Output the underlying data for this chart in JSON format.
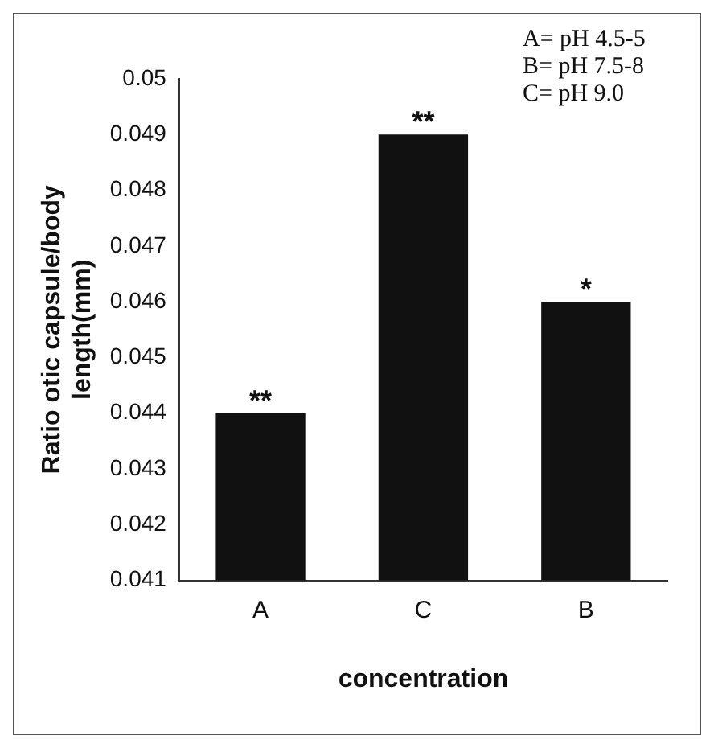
{
  "chart_data": {
    "type": "bar",
    "xlabel": "concentration",
    "ylabel": "Ratio otic capsule/body length(mm)",
    "categories": [
      "A",
      "C",
      "B"
    ],
    "values": [
      0.044,
      0.049,
      0.046
    ],
    "color": "#111111",
    "ylim": [
      0.041,
      0.05
    ],
    "yticks": [
      0.041,
      0.042,
      0.043,
      0.044,
      0.045,
      0.046,
      0.047,
      0.048,
      0.049,
      0.05
    ],
    "grid": false,
    "legend": false,
    "annotations": [
      {
        "text": "**",
        "x": "A",
        "y": 0.044
      },
      {
        "text": "**",
        "x": "C",
        "y": 0.049
      },
      {
        "text": "*",
        "x": "B",
        "y": 0.046
      },
      "A= pH 4.5-5",
      "B= pH 7.5-8",
      "C= pH 9.0"
    ]
  }
}
